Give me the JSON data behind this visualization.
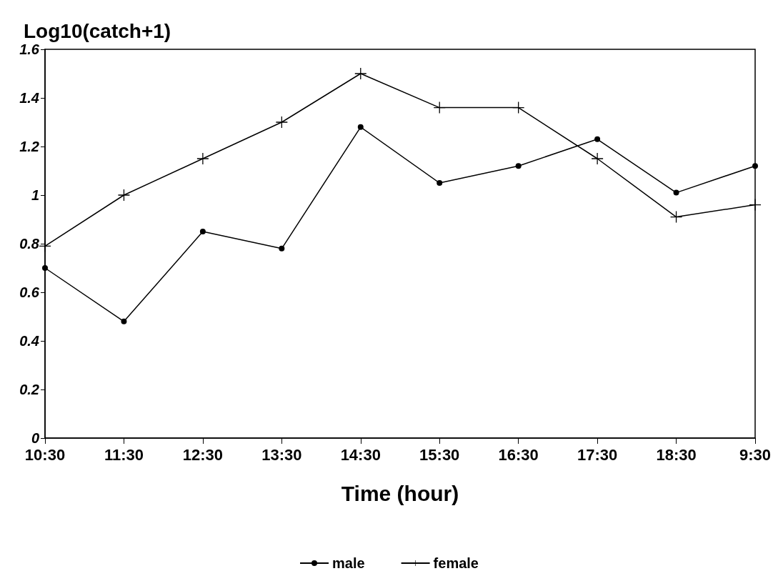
{
  "chart_data": {
    "type": "line",
    "xlabel": "Time (hour)",
    "ylabel": "Log10(catch+1)",
    "categories": [
      "10:30",
      "11:30",
      "12:30",
      "13:30",
      "14:30",
      "15:30",
      "16:30",
      "17:30",
      "18:30",
      "9:30"
    ],
    "series": [
      {
        "name": "male",
        "color": "#000000",
        "marker": "circle",
        "values": [
          0.7,
          0.48,
          0.85,
          0.78,
          1.28,
          1.05,
          1.12,
          1.23,
          1.01,
          1.12
        ]
      },
      {
        "name": "female",
        "color": "#000000",
        "marker": "cross",
        "values": [
          0.79,
          1.0,
          1.15,
          1.3,
          1.5,
          1.36,
          1.36,
          1.15,
          0.91,
          0.96
        ]
      }
    ],
    "ylim": [
      0,
      1.6
    ],
    "yticks": [
      0,
      0.2,
      0.4,
      0.6,
      0.8,
      1,
      1.2,
      1.4,
      1.6
    ],
    "grid": false,
    "legend": "bottom",
    "line_style": "solid"
  }
}
